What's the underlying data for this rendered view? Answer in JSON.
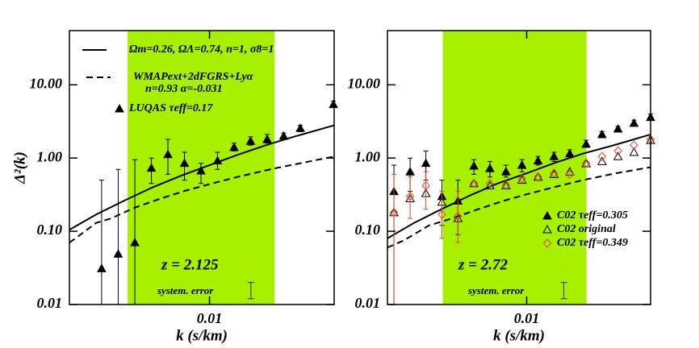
{
  "chart_data": [
    {
      "type": "scatter",
      "log_x": true,
      "log_y": true,
      "xlim": [
        0.0018,
        0.046
      ],
      "ylim": [
        0.01,
        55
      ],
      "xticks": [
        0.01
      ],
      "yticks": [
        0.01,
        {
          "value": 0.1,
          "label": "0.10"
        },
        {
          "value": 1,
          "label": "1.00"
        },
        {
          "value": 10,
          "label": "10.00"
        }
      ],
      "xlabel": "k (s/km)",
      "ylabel": "Δ²(k)",
      "band": {
        "xlim": [
          0.00367,
          0.0222
        ],
        "color": "#a6f000"
      },
      "redshift": "z = 2.125",
      "sys_error": {
        "x": 0.0166,
        "lower": 0.012,
        "upper": 0.02,
        "label": "system. error"
      },
      "series": [
        {
          "name": "Ωm=0.26, ΩΛ=0.74, n=1, σ8=1",
          "style": "solid",
          "color": "#000000",
          "x": [
            0.0018,
            0.0025,
            0.0035,
            0.005,
            0.007,
            0.01,
            0.014,
            0.02,
            0.028,
            0.046
          ],
          "values": [
            0.105,
            0.17,
            0.26,
            0.4,
            0.57,
            0.8,
            1.1,
            1.5,
            1.95,
            2.8
          ]
        },
        {
          "name": "WMAPext+2dFGRS+Lyα",
          "name_2": "n=0.93 α=-0.031",
          "style": "dashed",
          "color": "#000000",
          "x": [
            0.0018,
            0.002,
            0.0025,
            0.003,
            0.004,
            0.0055,
            0.0075,
            0.01,
            0.014,
            0.022,
            0.046
          ],
          "values": [
            0.07,
            0.085,
            0.13,
            0.15,
            0.21,
            0.28,
            0.36,
            0.44,
            0.55,
            0.72,
            1.05
          ]
        },
        {
          "name": "LUQAS τeff=0.17",
          "style": "filled-triangle",
          "color": "#000000",
          "x": [
            0.00267,
            0.00327,
            0.00401,
            0.00491,
            0.00601,
            0.00736,
            0.00901,
            0.01103,
            0.01351,
            0.01654,
            0.02026,
            0.0248,
            0.0304,
            0.0456
          ],
          "values": [
            0.031,
            0.049,
            0.07,
            0.73,
            1.12,
            0.85,
            0.67,
            0.92,
            1.4,
            1.7,
            1.8,
            2.0,
            2.55,
            5.4
          ],
          "lower": [
            0.01,
            0.01,
            0.01,
            0.45,
            0.6,
            0.5,
            0.45,
            0.7,
            1.25,
            1.5,
            1.6,
            1.8,
            2.3,
            4.9
          ],
          "upper": [
            0.5,
            0.7,
            0.95,
            1.0,
            1.8,
            1.2,
            0.85,
            1.2,
            1.6,
            1.95,
            2.1,
            2.2,
            2.8,
            6.0
          ]
        }
      ]
    },
    {
      "type": "scatter",
      "log_x": true,
      "log_y": true,
      "xlim": [
        0.0018,
        0.046
      ],
      "ylim": [
        0.01,
        55
      ],
      "xticks": [
        0.01
      ],
      "yticks": [
        0.01,
        {
          "value": 0.1,
          "label": "0.10"
        },
        {
          "value": 1,
          "label": "1.00"
        },
        {
          "value": 10,
          "label": "10.00"
        }
      ],
      "xlabel": "k (s/km)",
      "band": {
        "xlim": [
          0.00356,
          0.0209
        ],
        "color": "#a6f000"
      },
      "redshift": "z = 2.72",
      "sys_error": {
        "x": 0.0158,
        "lower": 0.012,
        "upper": 0.02,
        "label": "system. error"
      },
      "series": [
        {
          "style": "solid",
          "color": "#000000",
          "x": [
            0.0018,
            0.0025,
            0.0035,
            0.005,
            0.007,
            0.01,
            0.014,
            0.02,
            0.028,
            0.046
          ],
          "values": [
            0.08,
            0.13,
            0.2,
            0.31,
            0.45,
            0.62,
            0.85,
            1.15,
            1.45,
            2.1
          ]
        },
        {
          "style": "dashed",
          "color": "#000000",
          "x": [
            0.0018,
            0.0022,
            0.003,
            0.004,
            0.0055,
            0.0075,
            0.01,
            0.014,
            0.02,
            0.03,
            0.046
          ],
          "values": [
            0.06,
            0.075,
            0.12,
            0.15,
            0.2,
            0.26,
            0.32,
            0.4,
            0.5,
            0.62,
            0.75
          ]
        },
        {
          "name": "C02 τeff=0.305",
          "style": "filled-triangle",
          "color": "#000000",
          "x": [
            0.00195,
            0.00238,
            0.00289,
            0.00352,
            0.00429,
            0.00522,
            0.00636,
            0.00775,
            0.00944,
            0.0115,
            0.014,
            0.017,
            0.0208,
            0.0253,
            0.0308,
            0.0375,
            0.046
          ],
          "values": [
            0.35,
            0.65,
            0.85,
            0.3,
            0.26,
            0.78,
            0.72,
            0.65,
            0.8,
            0.92,
            1.05,
            1.15,
            1.55,
            2.1,
            2.5,
            3.0,
            3.6
          ],
          "lower": [
            0.01,
            0.35,
            0.5,
            0.12,
            0.09,
            0.6,
            0.55,
            0.55,
            0.65,
            0.8,
            0.9,
            1.0,
            1.4,
            1.9,
            2.3,
            2.8,
            3.3
          ],
          "upper": [
            0.8,
            1.0,
            1.25,
            0.5,
            0.5,
            0.95,
            0.9,
            0.8,
            0.95,
            1.05,
            1.2,
            1.3,
            1.75,
            2.3,
            2.7,
            3.3,
            4.0
          ]
        },
        {
          "name": "C02 original",
          "style": "open-triangle",
          "color": "#000000",
          "x": [
            0.00195,
            0.00238,
            0.00289,
            0.00352,
            0.00429,
            0.00522,
            0.00636,
            0.00775,
            0.00944,
            0.0115,
            0.014,
            0.017,
            0.0208,
            0.0253,
            0.0308,
            0.0375,
            0.046
          ],
          "values": [
            0.18,
            0.28,
            0.33,
            0.25,
            0.15,
            0.45,
            0.42,
            0.42,
            0.5,
            0.55,
            0.6,
            0.65,
            0.84,
            0.9,
            1.05,
            1.2,
            1.75
          ]
        },
        {
          "name": "C02 τeff=0.349",
          "style": "diamond",
          "color": "#e8401c",
          "x": [
            0.00195,
            0.00238,
            0.00289,
            0.00352,
            0.00429,
            0.00522,
            0.00636,
            0.00775,
            0.00944,
            0.0115,
            0.014,
            0.017,
            0.0208,
            0.0253,
            0.0308,
            0.0375,
            0.046
          ],
          "values": [
            0.18,
            0.3,
            0.42,
            0.17,
            0.16,
            0.45,
            0.45,
            0.43,
            0.52,
            0.55,
            0.62,
            0.6,
            0.85,
            1.05,
            1.25,
            1.5,
            1.8
          ],
          "lower": [
            0.01,
            0.15,
            0.2,
            0.08,
            0.07,
            null,
            null,
            null,
            null,
            null,
            null,
            null,
            null,
            null,
            null,
            null,
            null
          ],
          "upper": [
            0.6,
            0.55,
            0.65,
            0.35,
            0.35,
            null,
            null,
            null,
            null,
            null,
            null,
            null,
            null,
            null,
            null,
            null,
            null
          ]
        }
      ]
    }
  ]
}
